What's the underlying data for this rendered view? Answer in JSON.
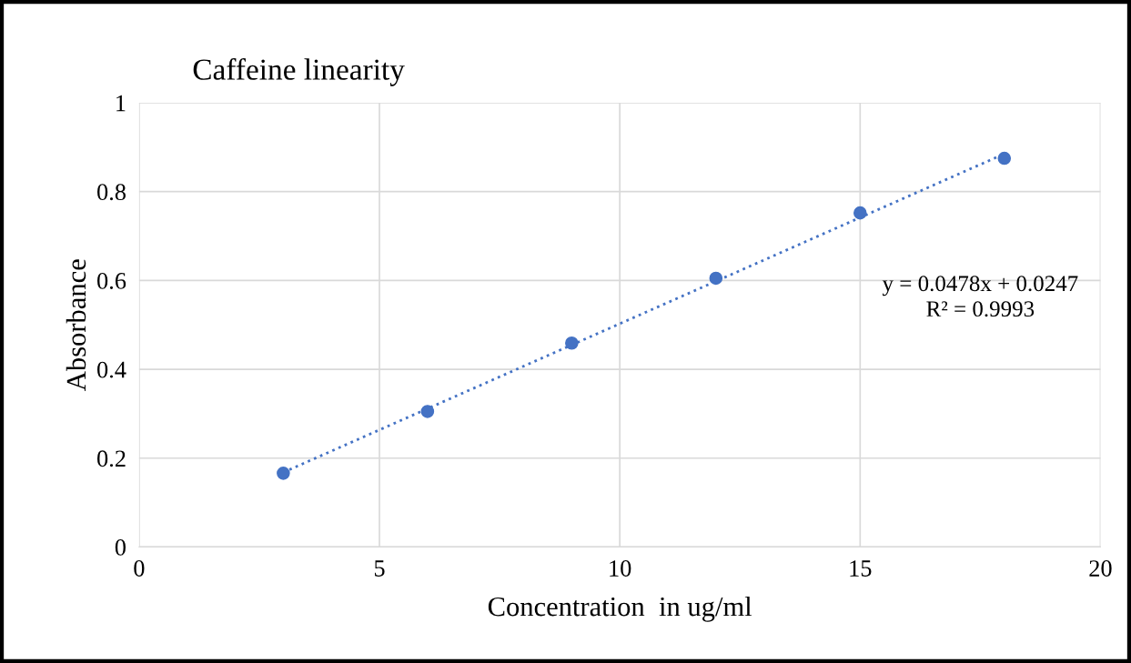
{
  "chart_data": {
    "type": "scatter",
    "title": "Caffeine linearity",
    "xlabel": "Concentration  in ug/ml",
    "ylabel": "Absorbance",
    "x": [
      3,
      6,
      9,
      12,
      15,
      18
    ],
    "series": [
      {
        "color": "#4472c4",
        "values": [
          0.166,
          0.305,
          0.459,
          0.605,
          0.752,
          0.875
        ],
        "marker": "circle"
      },
      {
        "type": "line",
        "color": "#4472c4",
        "x": [
          3,
          18
        ],
        "values": [
          0.168,
          0.885
        ],
        "line_style": "dotted",
        "marker": "none"
      }
    ],
    "annotations": [
      "y = 0.0478x + 0.0247\nR² = 0.9993"
    ],
    "xlim": [
      0,
      20
    ],
    "xticks": [
      0,
      5,
      10,
      15,
      20
    ],
    "ylim": [
      0,
      1
    ],
    "yticks": [
      0,
      0.2,
      0.4,
      0.6,
      0.8,
      1
    ],
    "grid": true,
    "legend": false
  }
}
